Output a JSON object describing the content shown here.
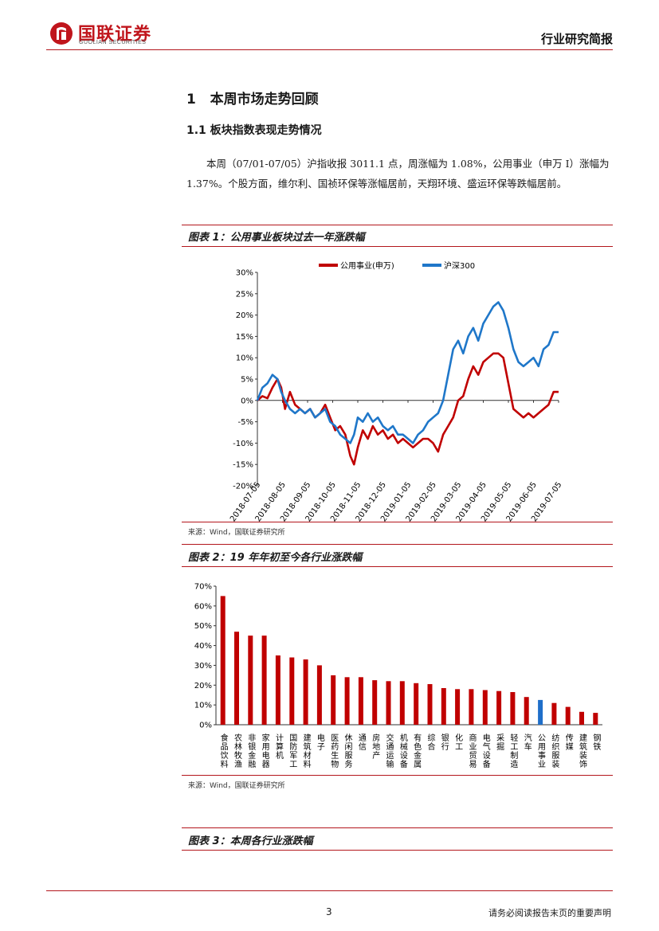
{
  "header": {
    "logo_cn": "国联证券",
    "logo_en": "GUOLIAN SECURITIES",
    "report_type": "行业研究简报"
  },
  "section": {
    "h1": "1   本周市场走势回顾",
    "h2": "1.1 板块指数表现走势情况",
    "paragraph": "本周（07/01-07/05）沪指收报 3011.1 点，周涨幅为 1.08%，公用事业（申万 I）涨幅为 1.37%。个股方面，维尔利、国祯环保等涨幅居前，天翔环境、盛运环保等跌幅居前。"
  },
  "figure1": {
    "title": "图表 1：公用事业板块过去一年涨跌幅",
    "source": "来源：Wind，国联证券研究所"
  },
  "figure2": {
    "title": "图表 2：19 年年初至今各行业涨跌幅",
    "source": "来源：Wind，国联证券研究所"
  },
  "figure3": {
    "title": "图表 3：本周各行业涨跌幅"
  },
  "footer": {
    "page": "3",
    "disclaimer": "请务必阅读报告末页的重要声明"
  },
  "colors": {
    "brand_red": "#c0151c",
    "line_red": "#c00000",
    "line_blue": "#1f77c9",
    "bar_red": "#c00000",
    "bar_blue": "#1f6fc9"
  },
  "chart_data": [
    {
      "type": "line",
      "title": "",
      "legend": [
        "公用事业(申万)",
        "沪深300"
      ],
      "legend_position": "top",
      "ylim": [
        -20,
        30
      ],
      "yticks": [
        "30%",
        "25%",
        "20%",
        "15%",
        "10%",
        "5%",
        "0%",
        "-5%",
        "-10%",
        "-15%",
        "-20%"
      ],
      "ytick_values": [
        30,
        25,
        20,
        15,
        10,
        5,
        0,
        -5,
        -10,
        -15,
        -20
      ],
      "xtick_labels": [
        "2018-07-05",
        "2018-08-05",
        "2018-09-05",
        "2018-10-05",
        "2018-11-05",
        "2018-12-05",
        "2019-01-05",
        "2019-02-05",
        "2019-03-05",
        "2019-04-05",
        "2019-05-05",
        "2019-06-05",
        "2019-07-05"
      ],
      "x_months": [
        0,
        1,
        2,
        3,
        4,
        5,
        6,
        7,
        8,
        9,
        10,
        11,
        12
      ],
      "series": [
        {
          "name": "公用事业(申万)",
          "x": [
            0,
            0.2,
            0.4,
            0.6,
            0.8,
            0.95,
            1.1,
            1.3,
            1.5,
            1.7,
            1.9,
            2.1,
            2.3,
            2.5,
            2.7,
            2.9,
            3.1,
            3.3,
            3.5,
            3.7,
            3.85,
            4.0,
            4.2,
            4.4,
            4.6,
            4.8,
            5.0,
            5.2,
            5.4,
            5.6,
            5.8,
            6.0,
            6.2,
            6.4,
            6.6,
            6.8,
            7.0,
            7.2,
            7.4,
            7.6,
            7.8,
            8.0,
            8.2,
            8.4,
            8.6,
            8.8,
            9.0,
            9.2,
            9.4,
            9.6,
            9.8,
            10.0,
            10.2,
            10.4,
            10.6,
            10.8,
            11.0,
            11.2,
            11.4,
            11.6,
            11.8,
            12.0
          ],
          "values": [
            0,
            1,
            0.5,
            3,
            5,
            3,
            -2,
            2,
            -1,
            -2,
            -3,
            -2,
            -4,
            -3,
            -1,
            -4,
            -7,
            -6,
            -8,
            -13,
            -15,
            -11,
            -7,
            -9,
            -6,
            -8,
            -7,
            -9,
            -8,
            -10,
            -9,
            -10,
            -11,
            -10,
            -9,
            -9,
            -10,
            -12,
            -8,
            -6,
            -4,
            0,
            1,
            5,
            8,
            6,
            9,
            10,
            11,
            11,
            10,
            4,
            -2,
            -3,
            -4,
            -3,
            -4,
            -3,
            -2,
            -1,
            2,
            2
          ]
        },
        {
          "name": "沪深300",
          "x": [
            0,
            0.2,
            0.4,
            0.6,
            0.8,
            0.95,
            1.1,
            1.3,
            1.5,
            1.7,
            1.9,
            2.1,
            2.3,
            2.5,
            2.7,
            2.9,
            3.1,
            3.3,
            3.5,
            3.7,
            3.85,
            4.0,
            4.2,
            4.4,
            4.6,
            4.8,
            5.0,
            5.2,
            5.4,
            5.6,
            5.8,
            6.0,
            6.2,
            6.4,
            6.6,
            6.8,
            7.0,
            7.2,
            7.4,
            7.6,
            7.8,
            8.0,
            8.2,
            8.4,
            8.6,
            8.8,
            9.0,
            9.2,
            9.4,
            9.6,
            9.8,
            10.0,
            10.2,
            10.4,
            10.6,
            10.8,
            11.0,
            11.2,
            11.4,
            11.6,
            11.8,
            12.0
          ],
          "values": [
            0,
            3,
            4,
            6,
            5,
            2,
            0,
            -2,
            -3,
            -2,
            -3,
            -2,
            -4,
            -3,
            -2,
            -5,
            -6,
            -8,
            -9,
            -10,
            -8,
            -4,
            -5,
            -3,
            -5,
            -4,
            -6,
            -7,
            -6,
            -8,
            -8,
            -9,
            -10,
            -8,
            -7,
            -5,
            -4,
            -3,
            0,
            6,
            12,
            14,
            11,
            15,
            17,
            14,
            18,
            20,
            22,
            23,
            21,
            17,
            12,
            9,
            8,
            9,
            10,
            8,
            12,
            13,
            16,
            16
          ]
        }
      ]
    },
    {
      "type": "bar",
      "title": "",
      "ylim": [
        0,
        70
      ],
      "yticks": [
        "70%",
        "60%",
        "50%",
        "40%",
        "30%",
        "20%",
        "10%",
        "0%"
      ],
      "ytick_values": [
        70,
        60,
        50,
        40,
        30,
        20,
        10,
        0
      ],
      "categories": [
        "食品饮料",
        "农林牧渔",
        "非银金融",
        "家用电器",
        "计算机",
        "国防军工",
        "建筑材料",
        "电子",
        "医药生物",
        "休闲服务",
        "通信",
        "房地产",
        "交通运输",
        "机械设备",
        "有色金属",
        "综合",
        "银行",
        "化工",
        "商业贸易",
        "电气设备",
        "采掘",
        "轻工制造",
        "汽车",
        "公用事业",
        "纺织服装",
        "传媒",
        "建筑装饰",
        "钢铁"
      ],
      "values": [
        65,
        47,
        45,
        45,
        35,
        34,
        33,
        30,
        25,
        24,
        24,
        22.5,
        22,
        22,
        21,
        20.5,
        18.5,
        18,
        18,
        17.5,
        17,
        16.5,
        14,
        12.5,
        11,
        9,
        6.5,
        6
      ],
      "highlight": "公用事业"
    }
  ]
}
